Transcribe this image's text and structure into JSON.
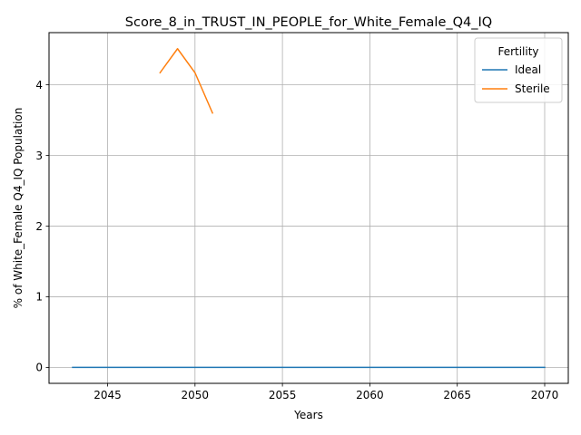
{
  "chart_data": {
    "type": "line",
    "title": "Score_8_in_TRUST_IN_PEOPLE_for_White_Female_Q4_IQ",
    "xlabel": "Years",
    "ylabel": "% of White_Female Q4_IQ Population",
    "xlim": [
      2041.65,
      2071.35
    ],
    "ylim": [
      -0.2256,
      4.7376
    ],
    "xticks": [
      2045,
      2050,
      2055,
      2060,
      2065,
      2070
    ],
    "yticks": [
      0,
      1,
      2,
      3,
      4
    ],
    "grid": true,
    "legend": {
      "title": "Fertility",
      "placement": "top-right"
    },
    "series": [
      {
        "name": "Ideal",
        "color": "#1f77b4",
        "x": [
          2043,
          2044,
          2045,
          2046,
          2047,
          2048,
          2049,
          2050,
          2051,
          2052,
          2053,
          2054,
          2055,
          2056,
          2057,
          2058,
          2059,
          2060,
          2061,
          2062,
          2063,
          2064,
          2065,
          2066,
          2067,
          2068,
          2069,
          2070
        ],
        "y": [
          0,
          0,
          0,
          0,
          0,
          0,
          0,
          0,
          0,
          0,
          0,
          0,
          0,
          0,
          0,
          0,
          0,
          0,
          0,
          0,
          0,
          0,
          0,
          0,
          0,
          0,
          0,
          0
        ]
      },
      {
        "name": "Sterile",
        "color": "#ff7f0e",
        "x": [
          2048,
          2049,
          2050,
          2051
        ],
        "y": [
          4.17,
          4.51,
          4.17,
          3.6
        ]
      }
    ]
  }
}
